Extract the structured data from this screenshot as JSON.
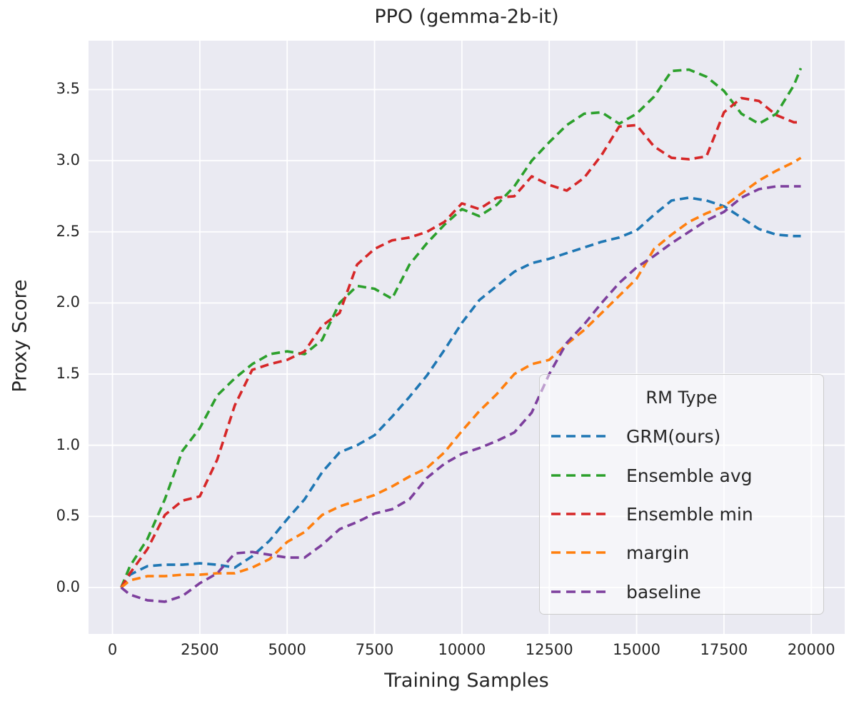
{
  "figure": {
    "background": "#ffffff"
  },
  "colors": {
    "axes_background": "#eaeaf2",
    "gridline": "#ffffff",
    "text": "#262626",
    "legend_border": "#cccccc"
  },
  "chart_data": {
    "type": "line",
    "title": "PPO (gemma-2b-it)",
    "xlabel": "Training Samples",
    "ylabel": "Proxy Score",
    "grid": true,
    "line_style": "dashed",
    "legend": {
      "title": "RM Type",
      "position": "lower right"
    },
    "xlim": [
      -700,
      20960
    ],
    "ylim": [
      -0.33,
      3.84
    ],
    "xticks": {
      "values": [
        0,
        2500,
        5000,
        7500,
        10000,
        12500,
        15000,
        17500,
        20000
      ],
      "labels": [
        "0",
        "2500",
        "5000",
        "7500",
        "10000",
        "12500",
        "15000",
        "17500",
        "20000"
      ]
    },
    "yticks": {
      "values": [
        0.0,
        0.5,
        1.0,
        1.5,
        2.0,
        2.5,
        3.0,
        3.5
      ],
      "labels": [
        "0.0",
        "0.5",
        "1.0",
        "1.5",
        "2.0",
        "2.5",
        "3.0",
        "3.5"
      ]
    },
    "x": [
      250,
      500,
      1000,
      1500,
      2000,
      2500,
      3000,
      3500,
      4000,
      4500,
      5000,
      5500,
      6000,
      6500,
      7000,
      7500,
      8000,
      8500,
      9000,
      9500,
      10000,
      10500,
      11000,
      11500,
      12000,
      12500,
      13000,
      13500,
      14000,
      14500,
      15000,
      15500,
      16000,
      16500,
      17000,
      17500,
      18000,
      18500,
      19000,
      19500,
      19700
    ],
    "series": [
      {
        "name": "GRM(ours)",
        "color": "#1f77b4",
        "values": [
          0.0,
          0.09,
          0.15,
          0.16,
          0.16,
          0.17,
          0.16,
          0.14,
          0.22,
          0.33,
          0.48,
          0.62,
          0.81,
          0.95,
          1.0,
          1.07,
          1.2,
          1.34,
          1.49,
          1.67,
          1.86,
          2.02,
          2.12,
          2.22,
          2.28,
          2.31,
          2.35,
          2.39,
          2.43,
          2.46,
          2.51,
          2.62,
          2.72,
          2.74,
          2.72,
          2.68,
          2.6,
          2.52,
          2.48,
          2.47,
          2.47
        ]
      },
      {
        "name": "Ensemble avg",
        "color": "#2ca02c",
        "values": [
          0.0,
          0.15,
          0.34,
          0.62,
          0.96,
          1.12,
          1.35,
          1.47,
          1.57,
          1.64,
          1.66,
          1.64,
          1.74,
          2.0,
          2.12,
          2.1,
          2.03,
          2.27,
          2.42,
          2.55,
          2.66,
          2.61,
          2.69,
          2.82,
          3.0,
          3.13,
          3.25,
          3.33,
          3.34,
          3.26,
          3.33,
          3.45,
          3.63,
          3.64,
          3.59,
          3.49,
          3.33,
          3.26,
          3.33,
          3.53,
          3.65
        ]
      },
      {
        "name": "Ensemble min",
        "color": "#d62728",
        "values": [
          0.0,
          0.1,
          0.27,
          0.51,
          0.61,
          0.64,
          0.9,
          1.28,
          1.53,
          1.57,
          1.6,
          1.66,
          1.84,
          1.93,
          2.27,
          2.38,
          2.44,
          2.46,
          2.5,
          2.57,
          2.7,
          2.66,
          2.74,
          2.75,
          2.89,
          2.83,
          2.79,
          2.88,
          3.04,
          3.24,
          3.25,
          3.1,
          3.02,
          3.01,
          3.03,
          3.34,
          3.44,
          3.42,
          3.32,
          3.27,
          3.27
        ]
      },
      {
        "name": "margin",
        "color": "#ff7f0e",
        "values": [
          0.0,
          0.05,
          0.08,
          0.08,
          0.09,
          0.09,
          0.1,
          0.1,
          0.14,
          0.2,
          0.32,
          0.39,
          0.51,
          0.57,
          0.61,
          0.65,
          0.71,
          0.78,
          0.84,
          0.95,
          1.1,
          1.24,
          1.36,
          1.5,
          1.57,
          1.6,
          1.71,
          1.81,
          1.93,
          2.05,
          2.17,
          2.38,
          2.48,
          2.57,
          2.63,
          2.68,
          2.77,
          2.86,
          2.93,
          2.99,
          3.02
        ]
      },
      {
        "name": "baseline",
        "color": "#7d3f9d",
        "values": [
          0.0,
          -0.05,
          -0.09,
          -0.1,
          -0.06,
          0.03,
          0.1,
          0.24,
          0.25,
          0.23,
          0.21,
          0.21,
          0.3,
          0.41,
          0.46,
          0.52,
          0.55,
          0.62,
          0.77,
          0.87,
          0.94,
          0.98,
          1.03,
          1.09,
          1.23,
          1.5,
          1.72,
          1.85,
          2.0,
          2.14,
          2.25,
          2.33,
          2.42,
          2.5,
          2.58,
          2.64,
          2.74,
          2.8,
          2.82,
          2.82,
          2.82
        ]
      }
    ]
  }
}
